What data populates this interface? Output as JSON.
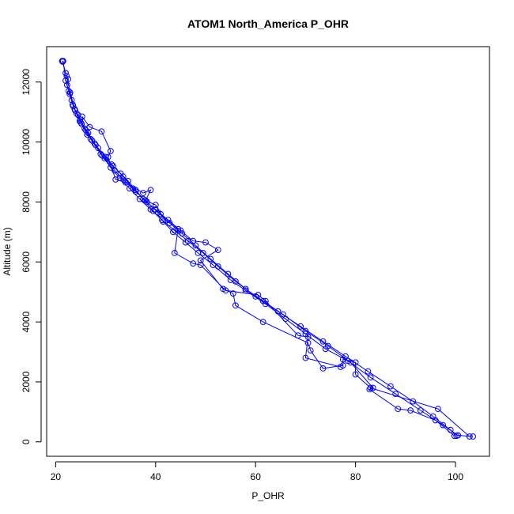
{
  "chart_data": {
    "type": "scatter",
    "title": "ATOM1 North_America P_OHR",
    "xlabel": "P_OHR",
    "ylabel": "Altitude (m)",
    "xlim": [
      18.2,
      106.8
    ],
    "ylim": [
      -480,
      13180
    ],
    "xticks": [
      20,
      40,
      60,
      80,
      100
    ],
    "yticks": [
      0,
      2000,
      4000,
      6000,
      8000,
      10000,
      12000
    ],
    "grid": false,
    "legend": "none",
    "color": "#0000ff",
    "markers": "open circles joined by lines",
    "series": [
      {
        "name": "",
        "points": [
          [
            21.3,
            12700
          ],
          [
            21.4,
            12680
          ],
          [
            22.0,
            12300
          ],
          [
            22.5,
            12100
          ],
          [
            22.3,
            11900
          ],
          [
            22.8,
            11600
          ],
          [
            23.2,
            11400
          ],
          [
            23.8,
            11100
          ],
          [
            24.5,
            10900
          ],
          [
            25.0,
            10650
          ],
          [
            26.0,
            10400
          ],
          [
            27.0,
            10100
          ],
          [
            28.5,
            9800
          ],
          [
            30.0,
            9500
          ],
          [
            31.5,
            9200
          ],
          [
            33.0,
            8950
          ],
          [
            34.5,
            8700
          ],
          [
            36.0,
            8400
          ],
          [
            37.5,
            8100
          ],
          [
            39.5,
            7700
          ],
          [
            41.5,
            7350
          ],
          [
            43.5,
            7000
          ],
          [
            46.0,
            6650
          ],
          [
            48.5,
            6300
          ],
          [
            51.5,
            5900
          ],
          [
            55.0,
            5400
          ],
          [
            58.0,
            5050
          ],
          [
            62.0,
            4600
          ],
          [
            66.0,
            4100
          ],
          [
            70.0,
            3600
          ],
          [
            74.0,
            3100
          ],
          [
            78.5,
            2700
          ],
          [
            83.0,
            2150
          ],
          [
            88.0,
            1600
          ],
          [
            93.0,
            1050
          ],
          [
            97.5,
            560
          ],
          [
            100.5,
            220
          ],
          [
            103.5,
            180
          ]
        ]
      },
      {
        "name": "",
        "points": [
          [
            21.5,
            12700
          ],
          [
            22.0,
            12050
          ],
          [
            22.6,
            11700
          ],
          [
            23.4,
            11250
          ],
          [
            24.2,
            10950
          ],
          [
            25.2,
            10600
          ],
          [
            26.3,
            10250
          ],
          [
            27.8,
            9950
          ],
          [
            29.3,
            9550
          ],
          [
            31.0,
            9150
          ],
          [
            32.8,
            8800
          ],
          [
            34.8,
            8450
          ],
          [
            36.8,
            8100
          ],
          [
            39.0,
            7750
          ],
          [
            41.3,
            7400
          ],
          [
            43.8,
            7050
          ],
          [
            46.5,
            6700
          ],
          [
            49.5,
            6300
          ],
          [
            52.5,
            5850
          ],
          [
            56.0,
            5350
          ],
          [
            60.0,
            4850
          ],
          [
            64.5,
            4350
          ],
          [
            69.0,
            3850
          ],
          [
            73.5,
            3350
          ],
          [
            78.0,
            2850
          ],
          [
            82.5,
            2350
          ],
          [
            87.0,
            1850
          ],
          [
            91.5,
            1350
          ],
          [
            95.5,
            850
          ],
          [
            99.0,
            400
          ],
          [
            100.2,
            200
          ]
        ]
      },
      {
        "name": "",
        "points": [
          [
            22.2,
            12200
          ],
          [
            22.9,
            11650
          ],
          [
            23.9,
            11050
          ],
          [
            24.9,
            10750
          ],
          [
            26.5,
            10300
          ],
          [
            28.0,
            9900
          ],
          [
            29.8,
            9450
          ],
          [
            31.8,
            9050
          ],
          [
            33.8,
            8700
          ],
          [
            36.0,
            8350
          ],
          [
            38.3,
            8000
          ],
          [
            40.5,
            7650
          ],
          [
            42.8,
            7300
          ],
          [
            45.3,
            6950
          ],
          [
            48.0,
            6550
          ],
          [
            51.0,
            6100
          ],
          [
            54.5,
            5600
          ],
          [
            58.0,
            5100
          ],
          [
            61.5,
            4700
          ],
          [
            65.5,
            4250
          ],
          [
            70.0,
            3700
          ],
          [
            74.5,
            3200
          ],
          [
            79.0,
            2650
          ],
          [
            83.5,
            1800
          ],
          [
            82.8,
            1750
          ],
          [
            88.5,
            1100
          ],
          [
            91.0,
            1050
          ],
          [
            96.0,
            720
          ],
          [
            99.8,
            200
          ]
        ]
      },
      {
        "name": "",
        "points": [
          [
            23.5,
            11200
          ],
          [
            24.8,
            10700
          ],
          [
            25.8,
            10450
          ],
          [
            27.3,
            10050
          ],
          [
            29.0,
            9600
          ],
          [
            31.2,
            9250
          ],
          [
            33.5,
            8850
          ],
          [
            35.5,
            8450
          ],
          [
            37.8,
            8050
          ],
          [
            40.0,
            7750
          ],
          [
            42.5,
            7400
          ],
          [
            45.0,
            7050
          ],
          [
            47.5,
            6700
          ],
          [
            50.0,
            6650
          ],
          [
            52.5,
            6400
          ],
          [
            49.0,
            6050
          ],
          [
            53.5,
            5100
          ],
          [
            55.5,
            4950
          ],
          [
            56.0,
            4550
          ],
          [
            61.5,
            4000
          ],
          [
            70.5,
            3300
          ],
          [
            71.0,
            3050
          ],
          [
            73.5,
            2450
          ],
          [
            77.5,
            2550
          ],
          [
            77.5,
            2750
          ],
          [
            80.0,
            2650
          ],
          [
            80.0,
            2250
          ],
          [
            83.0,
            1800
          ],
          [
            96.5,
            1100
          ],
          [
            102.8,
            180
          ]
        ]
      },
      {
        "name": "",
        "points": [
          [
            25.3,
            10850
          ],
          [
            26.8,
            10500
          ],
          [
            29.2,
            10350
          ],
          [
            31.0,
            9700
          ],
          [
            30.5,
            9500
          ],
          [
            32.0,
            8750
          ],
          [
            34.0,
            8650
          ],
          [
            37.5,
            8300
          ],
          [
            39.0,
            8400
          ],
          [
            38.0,
            8050
          ],
          [
            40.0,
            7900
          ],
          [
            41.0,
            7600
          ],
          [
            44.5,
            7100
          ],
          [
            43.8,
            6300
          ],
          [
            47.5,
            5950
          ],
          [
            49.0,
            5900
          ],
          [
            54.0,
            5050
          ],
          [
            60.5,
            4900
          ],
          [
            62.0,
            4700
          ],
          [
            68.5,
            3550
          ],
          [
            70.5,
            3500
          ],
          [
            70.0,
            2800
          ],
          [
            77.0,
            2500
          ]
        ]
      }
    ]
  }
}
